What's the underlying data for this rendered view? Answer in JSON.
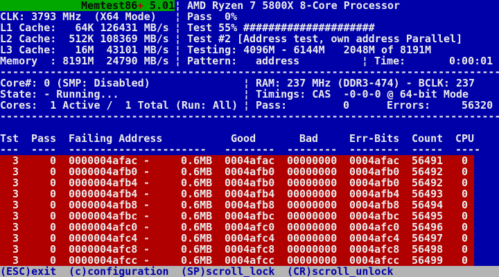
{
  "palette": {
    "background_blue": "#0000a8",
    "title_green": "#00a800",
    "error_red": "#b00000",
    "footer_gray": "#b4b4b4",
    "text_white": "#ececec",
    "text_black": "#0a0a0a",
    "plus_red": "#b40000",
    "footer_text_blue": "#0000a8"
  },
  "glyphs": {
    "pipe": "¦"
  },
  "separators": {
    "line": "--------------------------------------------------------------------------------"
  },
  "title_bar": {
    "app_name": "Memtest86",
    "plus": "+",
    "version": "5.01",
    "cpu_model": "AMD Ryzen 7 5800X 8-Core Processor"
  },
  "sysinfo": {
    "clk": "CLK: 3793 MHz  (X64 Mode)",
    "l1": "L1 Cache:   64K 126431 MB/s",
    "l2": "L2 Cache:  512K 108369 MB/s",
    "l3": "L3 Cache:   16M  43101 MB/s",
    "memory": "Memory  : 8191M  24790 MB/s"
  },
  "test_status": {
    "pass_label": "Pass",
    "pass_percent": "0%",
    "test_label": "Test 55%",
    "progress_bar": "#####################",
    "test_number": "Test #2",
    "test_description": "[Address test, own address Parallel]",
    "testing_range": "Testing: 4096M - 6144M   2048M of 8191M",
    "pattern_label": "Pattern:",
    "pattern_value": "address",
    "time_label": "Time:",
    "time_value": "0:00:01"
  },
  "smp": {
    "core": "Core#: 0 (SMP: Disabled)",
    "state": "State: - Running...",
    "cores": "Cores:  1 Active /  1 Total (Run: All)"
  },
  "memctl": {
    "ram": "RAM: 237 MHz (DDR3-474) - BCLK: 237",
    "timings": "Timings: CAS  -0-0-0 @ 64-bit Mode",
    "pass_label": "Pass:",
    "pass_value": "0",
    "errors_label": "Errors:",
    "errors_value": "56320"
  },
  "table": {
    "headers": [
      "Tst",
      "Pass",
      "Failing Address",
      "Good",
      "Bad",
      "Err-Bits",
      "Count",
      "CPU"
    ],
    "underline": [
      "---",
      "----",
      "----------------------",
      "--------",
      "--------",
      "--------",
      "-----",
      "----"
    ],
    "dash_sep": "-",
    "rows": [
      {
        "tst": "3",
        "pass": "0",
        "addr": "0000004afac",
        "size": "0.6MB",
        "good": "0004afac",
        "bad": "00000000",
        "err": "0004afac",
        "count": "56491",
        "cpu": "0"
      },
      {
        "tst": "3",
        "pass": "0",
        "addr": "0000004afb0",
        "size": "0.6MB",
        "good": "0004afb0",
        "bad": "00000000",
        "err": "0004afb0",
        "count": "56492",
        "cpu": "0"
      },
      {
        "tst": "3",
        "pass": "0",
        "addr": "0000004afb4",
        "size": "0.6MB",
        "good": "0004afb0",
        "bad": "00000000",
        "err": "0004afb0",
        "count": "56492",
        "cpu": "0"
      },
      {
        "tst": "3",
        "pass": "0",
        "addr": "0000004afb4",
        "size": "0.6MB",
        "good": "0004afb4",
        "bad": "00000000",
        "err": "0004afb4",
        "count": "56493",
        "cpu": "0"
      },
      {
        "tst": "3",
        "pass": "0",
        "addr": "0000004afb8",
        "size": "0.6MB",
        "good": "0004afb8",
        "bad": "00000000",
        "err": "0004afb8",
        "count": "56494",
        "cpu": "0"
      },
      {
        "tst": "3",
        "pass": "0",
        "addr": "0000004afbc",
        "size": "0.6MB",
        "good": "0004afbc",
        "bad": "00000000",
        "err": "0004afbc",
        "count": "56495",
        "cpu": "0"
      },
      {
        "tst": "3",
        "pass": "0",
        "addr": "0000004afc0",
        "size": "0.6MB",
        "good": "0004afc0",
        "bad": "00000000",
        "err": "0004afc0",
        "count": "56496",
        "cpu": "0"
      },
      {
        "tst": "3",
        "pass": "0",
        "addr": "0000004afc4",
        "size": "0.6MB",
        "good": "0004afc4",
        "bad": "00000000",
        "err": "0004afc4",
        "count": "56497",
        "cpu": "0"
      },
      {
        "tst": "3",
        "pass": "0",
        "addr": "0000004afc8",
        "size": "0.6MB",
        "good": "0004afc8",
        "bad": "00000000",
        "err": "0004afc8",
        "count": "56498",
        "cpu": "0"
      },
      {
        "tst": "3",
        "pass": "0",
        "addr": "0000004afcc",
        "size": "0.6MB",
        "good": "0004afcc",
        "bad": "00000000",
        "err": "0004afcc",
        "count": "56499",
        "cpu": "0"
      }
    ]
  },
  "footer": {
    "items": [
      "(ESC)exit",
      "(c)configuration",
      "(SP)scroll_lock",
      "(CR)scroll_unlock"
    ]
  }
}
